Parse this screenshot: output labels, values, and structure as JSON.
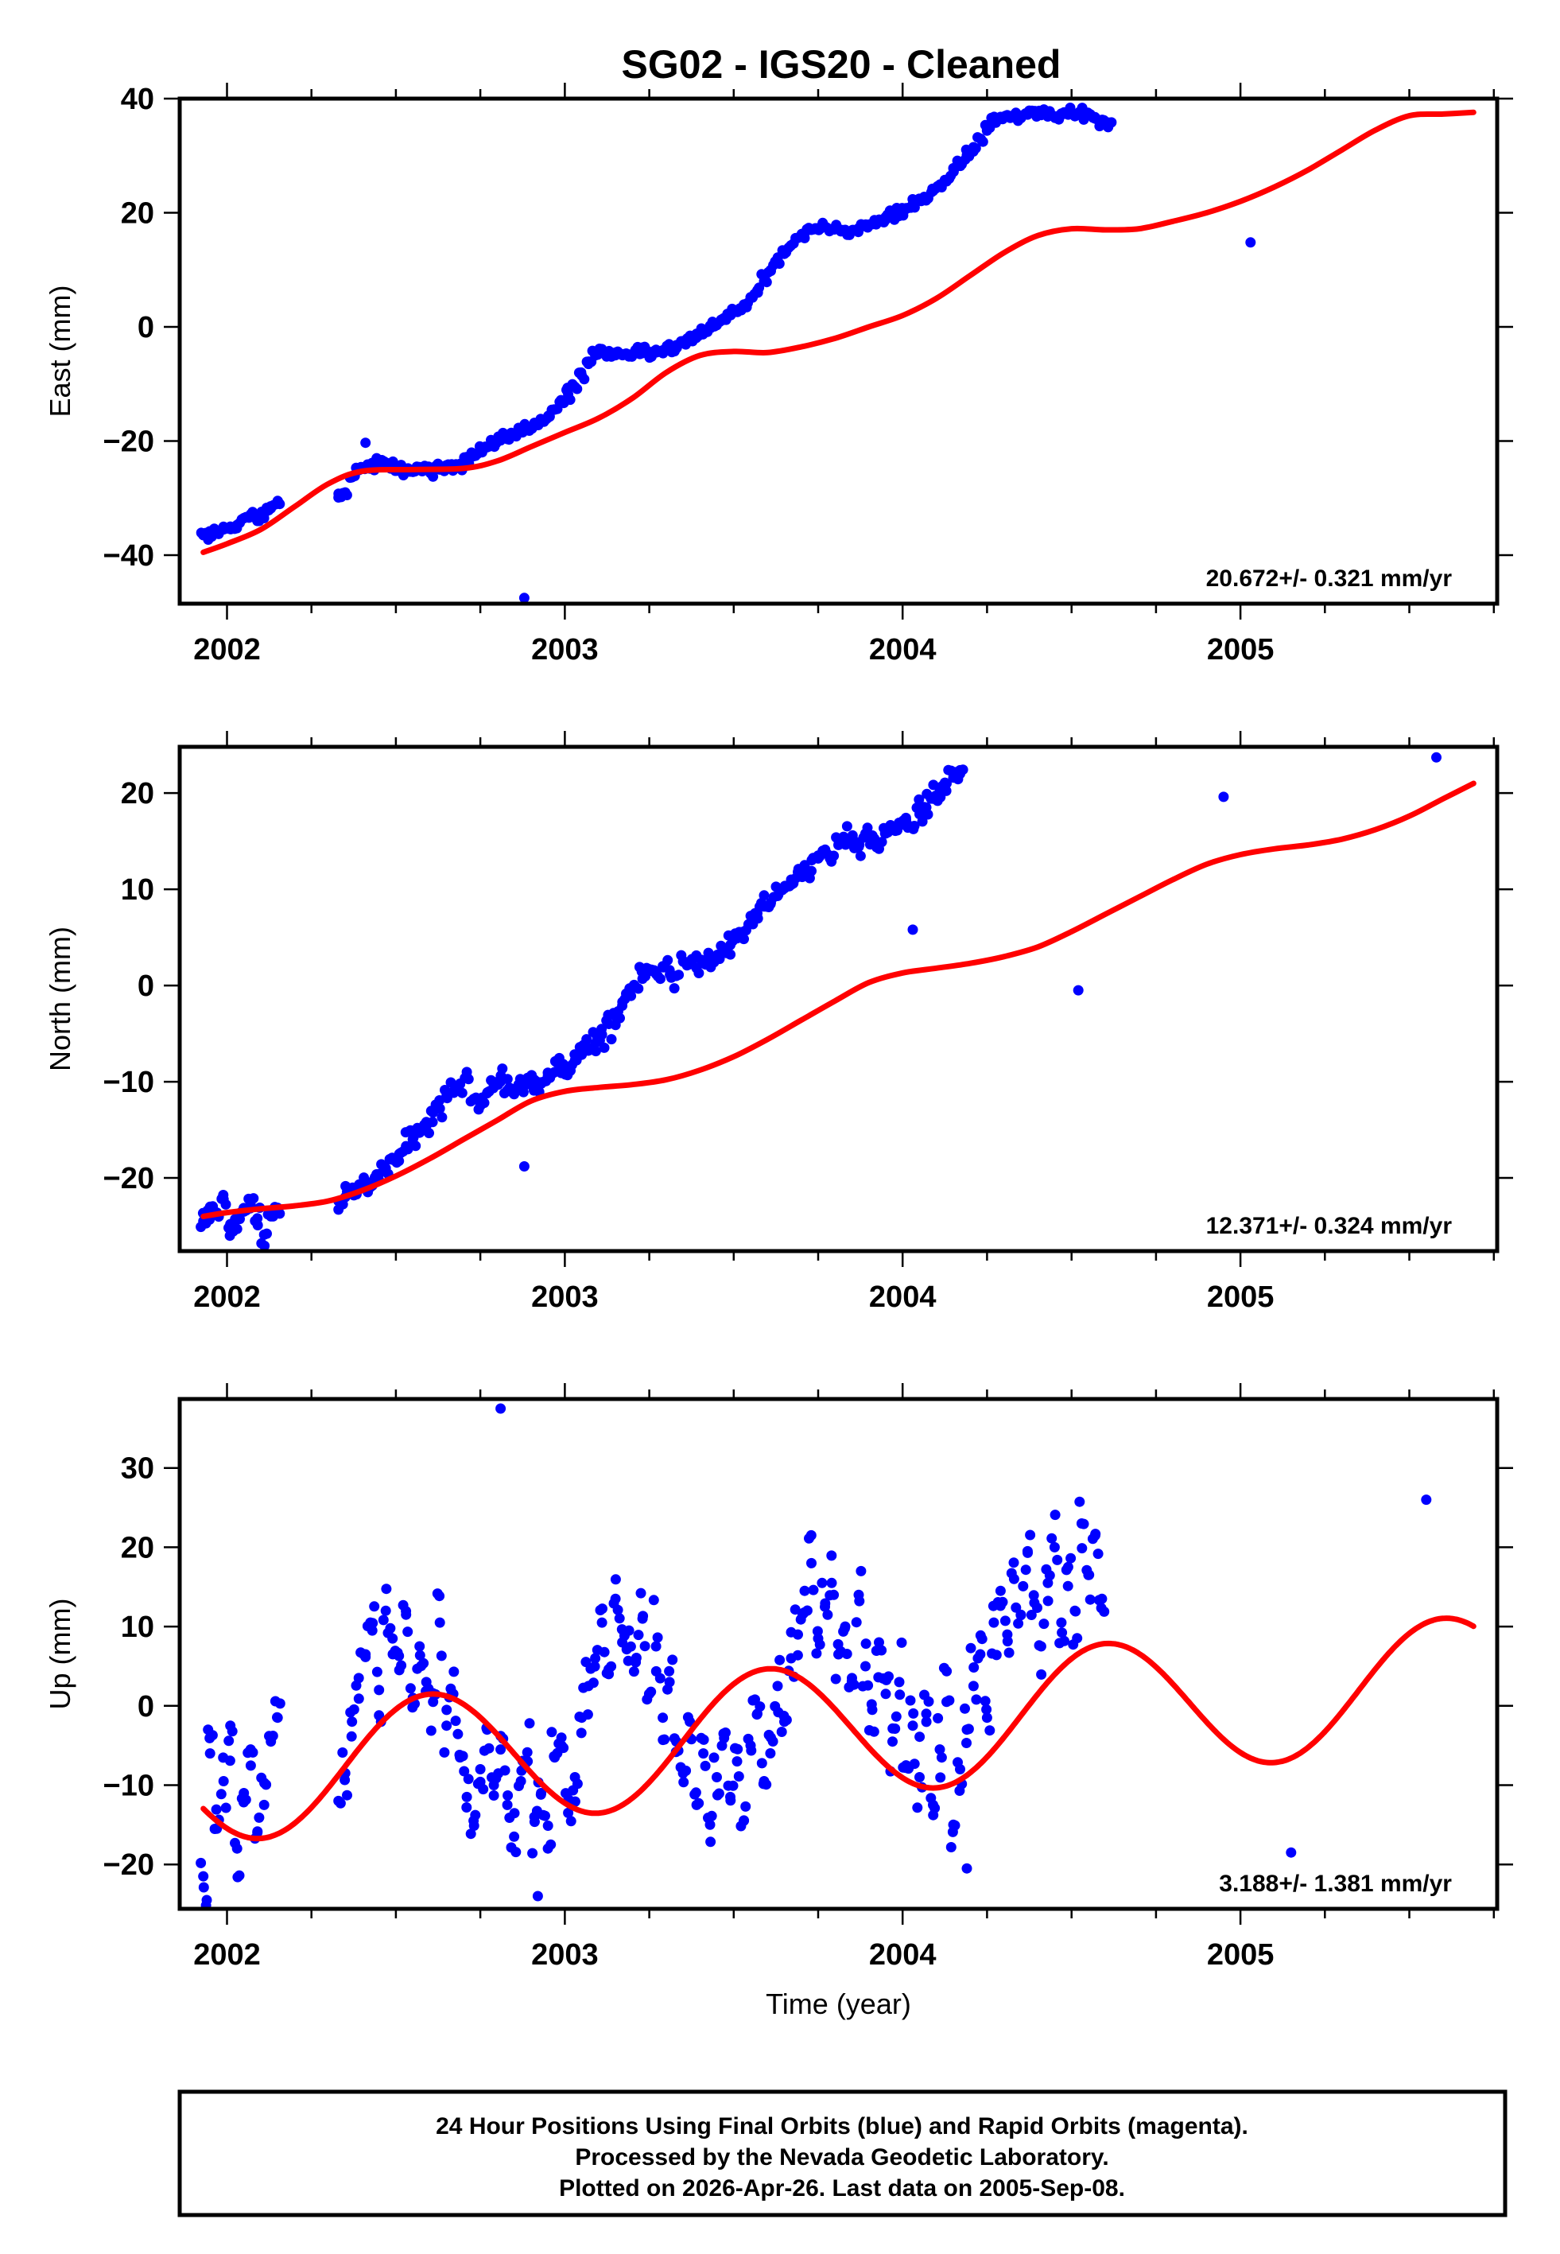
{
  "title": "SG02  - IGS20 - Cleaned",
  "footer": {
    "lines": [
      "24 Hour Positions Using Final Orbits (blue) and Rapid Orbits (magenta).",
      "Processed by the Nevada Geodetic Laboratory.",
      "Plotted on 2026-Apr-26. Last data on 2005-Sep-08."
    ]
  },
  "colors": {
    "points": "#0000ff",
    "fit": "#ff0000",
    "axes": "#000000"
  },
  "chart_data": [
    {
      "type": "scatter",
      "name": "east",
      "ylabel": "East (mm)",
      "xlabel": "",
      "xlim": [
        2001.86,
        2005.76
      ],
      "ylim": [
        -48.5,
        40
      ],
      "xticks": [
        2002,
        2003,
        2004,
        2005
      ],
      "xtick_labels": [
        "2002",
        "2003",
        "2004",
        "2005"
      ],
      "yticks": [
        40,
        20,
        0,
        -20,
        -40
      ],
      "ytick_labels": [
        "40",
        "20",
        "0",
        "−20",
        "−40"
      ],
      "rate_label": "20.672+/- 0.321 mm/yr",
      "fit": {
        "x": [
          1.93,
          2.0,
          2.1,
          2.2,
          2.3,
          2.4,
          2.55,
          2.7,
          2.8,
          2.9,
          3.0,
          3.1,
          3.2,
          3.3,
          3.4,
          3.5,
          3.6,
          3.7,
          3.8,
          3.9,
          4.0,
          4.1,
          4.2,
          4.3,
          4.4,
          4.5,
          4.6,
          4.7,
          4.8,
          4.9,
          5.0,
          5.1,
          5.2,
          5.3,
          5.4,
          5.5,
          5.6,
          5.69
        ],
        "y": [
          -39.5,
          -38.0,
          -35.5,
          -31.5,
          -27.5,
          -25.3,
          -25.0,
          -24.8,
          -23.5,
          -21.0,
          -18.5,
          -16.0,
          -12.5,
          -8.0,
          -5.0,
          -4.3,
          -4.5,
          -3.5,
          -2.0,
          0.0,
          2.0,
          5.0,
          9.0,
          13.0,
          16.0,
          17.2,
          17.0,
          17.2,
          18.5,
          20.0,
          22.0,
          24.5,
          27.5,
          31.0,
          34.5,
          37.0,
          37.3,
          37.6
        ]
      },
      "points_x_start": 1.93,
      "points_x_step": 0.02,
      "gap": [
        2.16,
        2.33
      ],
      "points_y": [
        -36.5,
        -36.8,
        -36.0,
        -35.5,
        -35.0,
        -34.7,
        -33.5,
        -33.2,
        -34.0,
        -32.8,
        -31.8,
        -30.5,
        -29.9,
        -29.0,
        -26.2,
        -25.0,
        -24.5,
        -24.8,
        -23.8,
        -24.0,
        -24.3,
        -25.1,
        -25.0,
        -25.4,
        -24.9,
        -24.7,
        -25.2,
        -25.0,
        -24.6,
        -24.5,
        -24.0,
        -22.8,
        -22.2,
        -21.7,
        -21.1,
        -20.5,
        -19.9,
        -19.4,
        -19.0,
        -18.3,
        -17.8,
        -17.2,
        -16.5,
        -15.9,
        -14.5,
        -13.2,
        -11.8,
        -10.5,
        -8.5,
        -6.5,
        -5.0,
        -4.6,
        -4.8,
        -4.5,
        -4.9,
        -5.2,
        -4.3,
        -4.6,
        -4.8,
        -4.0,
        -4.1,
        -3.6,
        -3.2,
        -2.5,
        -2.1,
        -1.2,
        -0.8,
        0.2,
        0.6,
        1.5,
        2.1,
        2.8,
        3.9,
        5.2,
        6.4,
        8.0,
        9.8,
        11.5,
        12.8,
        14.3,
        15.6,
        16.4,
        17.0,
        17.3,
        17.5,
        17.1,
        17.2,
        17.0,
        16.8,
        17.3,
        17.6,
        18.0,
        18.4,
        18.8,
        19.5,
        20.1,
        20.8,
        21.5,
        22.3,
        22.5,
        23.8,
        24.6,
        25.5,
        27.8,
        28.9,
        30.1,
        31.5,
        33.0,
        34.6,
        35.9,
        36.8,
        37.1,
        37.0,
        36.6,
        37.2,
        37.5,
        37.3,
        37.0,
        36.8,
        37.4,
        37.2,
        36.9,
        37.6,
        37.2,
        36.5,
        36.0,
        35.8
      ],
      "outliers": [
        {
          "x": 2002.88,
          "y": -47.5
        },
        {
          "x": 2002.41,
          "y": -20.3
        },
        {
          "x": 2005.03,
          "y": 14.8
        }
      ]
    },
    {
      "type": "scatter",
      "name": "north",
      "ylabel": "North (mm)",
      "xlabel": "",
      "xlim": [
        2001.86,
        2005.76
      ],
      "ylim": [
        -27.6,
        24.8
      ],
      "xticks": [
        2002,
        2003,
        2004,
        2005
      ],
      "xtick_labels": [
        "2002",
        "2003",
        "2004",
        "2005"
      ],
      "yticks": [
        20,
        10,
        0,
        -10,
        -20
      ],
      "ytick_labels": [
        "20",
        "10",
        "0",
        "−10",
        "−20"
      ],
      "rate_label": "12.371+/- 0.324 mm/yr",
      "fit": {
        "x": [
          1.93,
          2.0,
          2.1,
          2.2,
          2.3,
          2.4,
          2.5,
          2.6,
          2.7,
          2.8,
          2.9,
          3.0,
          3.1,
          3.2,
          3.3,
          3.4,
          3.5,
          3.6,
          3.7,
          3.8,
          3.9,
          4.0,
          4.1,
          4.2,
          4.3,
          4.4,
          4.5,
          4.6,
          4.7,
          4.8,
          4.9,
          5.0,
          5.1,
          5.2,
          5.3,
          5.4,
          5.5,
          5.6,
          5.69
        ],
        "y": [
          -24.0,
          -23.6,
          -23.2,
          -22.9,
          -22.4,
          -21.3,
          -19.8,
          -18.0,
          -16.0,
          -14.0,
          -12.0,
          -11.0,
          -10.6,
          -10.3,
          -9.8,
          -8.8,
          -7.4,
          -5.6,
          -3.6,
          -1.6,
          0.3,
          1.3,
          1.8,
          2.3,
          3.0,
          4.0,
          5.6,
          7.4,
          9.2,
          11.0,
          12.6,
          13.6,
          14.2,
          14.6,
          15.2,
          16.2,
          17.6,
          19.4,
          21.0
        ]
      },
      "points_x_start": 1.93,
      "points_x_step": 0.02,
      "gap": [
        2.16,
        2.33
      ],
      "points_y": [
        -24.5,
        -23.0,
        -23.6,
        -22.2,
        -24.8,
        -25.3,
        -23.5,
        -22.8,
        -24.2,
        -25.9,
        -24.0,
        -23.1,
        -22.4,
        -22.0,
        -21.5,
        -21.2,
        -20.3,
        -20.8,
        -19.6,
        -19.0,
        -18.1,
        -17.5,
        -16.7,
        -16.0,
        -15.3,
        -14.6,
        -13.2,
        -12.8,
        -11.5,
        -11.0,
        -10.2,
        -9.5,
        -11.8,
        -12.5,
        -11.2,
        -10.4,
        -10.0,
        -10.9,
        -11.3,
        -10.1,
        -9.6,
        -9.8,
        -10.2,
        -9.4,
        -9.0,
        -8.6,
        -8.9,
        -7.8,
        -7.2,
        -6.5,
        -6.0,
        -5.1,
        -4.0,
        -3.2,
        -2.1,
        -1.0,
        -0.2,
        0.7,
        1.5,
        1.2,
        2.0,
        1.6,
        1.0,
        2.5,
        2.2,
        1.8,
        2.6,
        3.1,
        2.9,
        3.5,
        4.2,
        4.9,
        5.6,
        6.4,
        7.5,
        8.2,
        8.6,
        9.3,
        10.1,
        11.0,
        11.8,
        12.5,
        11.9,
        13.2,
        13.8,
        13.4,
        14.6,
        15.2,
        15.0,
        14.4,
        15.6,
        15.1,
        14.2,
        15.8,
        16.3,
        16.9,
        17.2,
        16.4,
        17.8,
        18.5,
        19.4,
        20.2,
        21.0,
        21.6,
        22.0
      ],
      "outliers": [
        {
          "x": 2002.88,
          "y": -18.8
        },
        {
          "x": 2004.52,
          "y": -0.5
        },
        {
          "x": 2004.95,
          "y": 19.6
        },
        {
          "x": 2005.58,
          "y": 23.7
        },
        {
          "x": 2004.03,
          "y": 5.8
        }
      ]
    },
    {
      "type": "scatter",
      "name": "up",
      "ylabel": "Up (mm)",
      "xlabel": "Time (year)",
      "xlim": [
        2001.86,
        2005.76
      ],
      "ylim": [
        -25.6,
        38.7
      ],
      "xticks": [
        2002,
        2003,
        2004,
        2005
      ],
      "xtick_labels": [
        "2002",
        "2003",
        "2004",
        "2005"
      ],
      "yticks": [
        30,
        20,
        10,
        0,
        -10,
        -20
      ],
      "ytick_labels": [
        "30",
        "20",
        "10",
        "0",
        "−10",
        "−20"
      ],
      "rate_label": "3.188+/- 1.381 mm/yr",
      "fit_model": {
        "trend_mm_per_yr": 3.188,
        "offset_mm": -3.0,
        "epoch": 2003.8,
        "amplitude_mm": 8.3,
        "phase_peak_fraction": 0.6
      },
      "points_x_start": 1.93,
      "points_x_step": 0.02,
      "gap": [
        2.16,
        2.33
      ],
      "points_y": [
        -21.5,
        -6.0,
        -15.5,
        -9.5,
        -2.5,
        -18.0,
        -11.0,
        -5.5,
        -16.0,
        -12.5,
        -4.5,
        -1.5,
        -12.0,
        -8.5,
        -2.0,
        3.5,
        6.5,
        9.5,
        2.0,
        12.0,
        8.5,
        4.5,
        11.5,
        1.0,
        7.5,
        3.0,
        0.5,
        10.5,
        -2.5,
        1.5,
        -6.5,
        -11.5,
        -14.5,
        -8.0,
        -3.0,
        -10.0,
        -5.5,
        -12.5,
        -16.5,
        -9.5,
        -7.0,
        -14.0,
        -11.0,
        -18.0,
        -6.5,
        -4.0,
        -13.5,
        -9.0,
        -1.5,
        2.5,
        6.0,
        10.5,
        4.0,
        13.5,
        8.0,
        9.5,
        5.5,
        11.0,
        1.5,
        7.5,
        -1.5,
        3.0,
        -4.5,
        -8.5,
        -2.0,
        -12.5,
        -6.0,
        -15.0,
        -9.0,
        -3.5,
        -11.5,
        -7.0,
        -14.5,
        -5.0,
        -1.0,
        -9.5,
        -4.0,
        2.5,
        -2.0,
        6.0,
        9.0,
        14.5,
        18.0,
        8.5,
        12.5,
        15.5,
        6.5,
        10.0,
        3.5,
        14.0,
        5.0,
        -0.5,
        8.0,
        1.5,
        -4.5,
        3.0,
        -7.5,
        -2.5,
        -9.0,
        -1.0,
        -12.5,
        -5.5,
        0.5,
        -15.0,
        -8.0,
        -3.0,
        2.5,
        6.5,
        -1.5,
        10.5,
        14.5,
        9.0,
        16.0,
        11.5,
        19.5,
        13.0,
        7.5,
        15.5,
        20.0,
        10.5,
        17.5,
        12.0,
        23.0,
        16.5,
        21.5,
        13.5
      ],
      "outliers": [
        {
          "x": 2002.81,
          "y": 37.5
        },
        {
          "x": 2002.92,
          "y": -24.0
        },
        {
          "x": 2001.94,
          "y": -24.5
        },
        {
          "x": 2005.15,
          "y": -18.5
        },
        {
          "x": 2004.19,
          "y": -20.5
        },
        {
          "x": 2005.55,
          "y": 26.0
        }
      ]
    }
  ]
}
